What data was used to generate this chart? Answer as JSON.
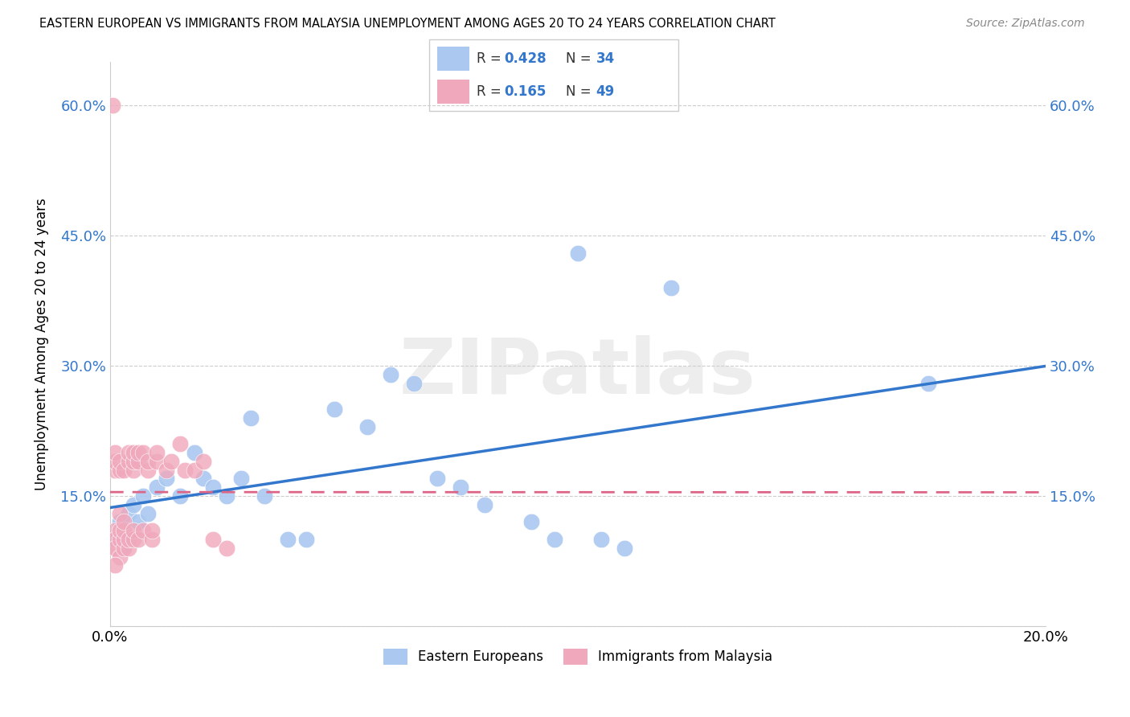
{
  "title": "EASTERN EUROPEAN VS IMMIGRANTS FROM MALAYSIA UNEMPLOYMENT AMONG AGES 20 TO 24 YEARS CORRELATION CHART",
  "source": "Source: ZipAtlas.com",
  "ylabel": "Unemployment Among Ages 20 to 24 years",
  "xlim": [
    0.0,
    0.2
  ],
  "ylim": [
    0.0,
    0.65
  ],
  "xticks": [
    0.0,
    0.05,
    0.1,
    0.15,
    0.2
  ],
  "yticks": [
    0.0,
    0.15,
    0.3,
    0.45,
    0.6
  ],
  "blue_R": 0.428,
  "blue_N": 34,
  "pink_R": 0.165,
  "pink_N": 49,
  "blue_color": "#aac8f0",
  "pink_color": "#f0a8bc",
  "blue_line_color": "#3377cc",
  "pink_line_color": "#dd6688",
  "legend_label_blue": "Eastern Europeans",
  "legend_label_pink": "Immigrants from Malaysia",
  "watermark": "ZIPatlas",
  "blue_scatter_x": [
    0.001,
    0.002,
    0.003,
    0.004,
    0.005,
    0.006,
    0.007,
    0.008,
    0.01,
    0.012,
    0.015,
    0.018,
    0.02,
    0.022,
    0.025,
    0.028,
    0.03,
    0.033,
    0.038,
    0.042,
    0.048,
    0.055,
    0.06,
    0.065,
    0.07,
    0.075,
    0.08,
    0.09,
    0.095,
    0.1,
    0.105,
    0.11,
    0.12,
    0.175
  ],
  "blue_scatter_y": [
    0.1,
    0.12,
    0.09,
    0.13,
    0.14,
    0.12,
    0.15,
    0.13,
    0.16,
    0.17,
    0.15,
    0.2,
    0.17,
    0.16,
    0.15,
    0.17,
    0.24,
    0.15,
    0.1,
    0.1,
    0.25,
    0.23,
    0.29,
    0.28,
    0.17,
    0.16,
    0.14,
    0.12,
    0.1,
    0.43,
    0.1,
    0.09,
    0.39,
    0.28
  ],
  "pink_scatter_x": [
    0.0005,
    0.001,
    0.001,
    0.001,
    0.001,
    0.001,
    0.001,
    0.001,
    0.001,
    0.002,
    0.002,
    0.002,
    0.002,
    0.002,
    0.002,
    0.003,
    0.003,
    0.003,
    0.003,
    0.003,
    0.004,
    0.004,
    0.004,
    0.004,
    0.005,
    0.005,
    0.005,
    0.005,
    0.005,
    0.006,
    0.006,
    0.006,
    0.007,
    0.007,
    0.008,
    0.008,
    0.009,
    0.009,
    0.01,
    0.01,
    0.012,
    0.013,
    0.015,
    0.016,
    0.018,
    0.02,
    0.022,
    0.025,
    0.001
  ],
  "pink_scatter_y": [
    0.6,
    0.1,
    0.11,
    0.09,
    0.18,
    0.19,
    0.1,
    0.2,
    0.09,
    0.1,
    0.11,
    0.13,
    0.18,
    0.19,
    0.08,
    0.09,
    0.1,
    0.11,
    0.12,
    0.18,
    0.09,
    0.1,
    0.19,
    0.2,
    0.1,
    0.11,
    0.18,
    0.19,
    0.2,
    0.1,
    0.19,
    0.2,
    0.11,
    0.2,
    0.18,
    0.19,
    0.1,
    0.11,
    0.19,
    0.2,
    0.18,
    0.19,
    0.21,
    0.18,
    0.18,
    0.19,
    0.1,
    0.09,
    0.07
  ]
}
